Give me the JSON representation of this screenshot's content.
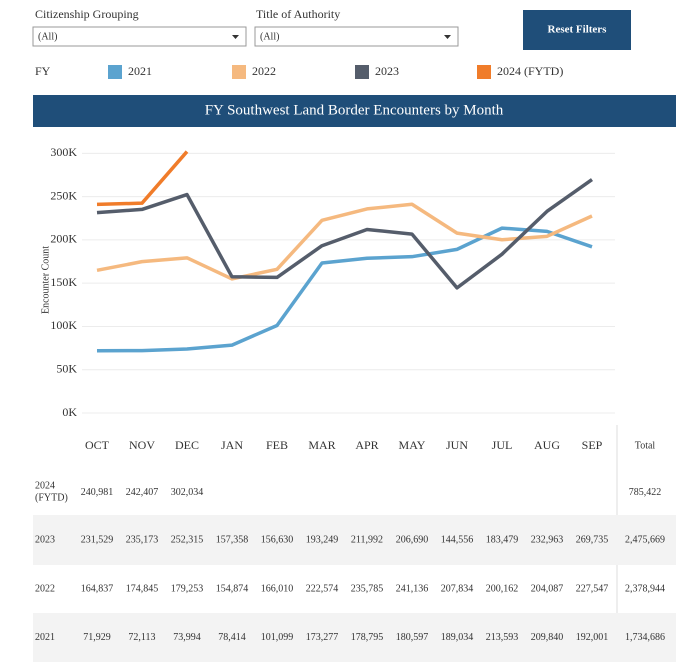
{
  "filters": [
    {
      "label": "Citizenship Grouping",
      "value": "(All)"
    },
    {
      "label": "Title of Authority",
      "value": "(All)"
    }
  ],
  "reset_button": "Reset Filters",
  "legend_title": "FY",
  "chart_data": {
    "type": "line",
    "title": "FY Southwest Land Border Encounters by Month",
    "y_label": "Encounter Count",
    "categories": [
      "OCT",
      "NOV",
      "DEC",
      "JAN",
      "FEB",
      "MAR",
      "APR",
      "MAY",
      "JUN",
      "JUL",
      "AUG",
      "SEP"
    ],
    "series": [
      {
        "name": "2021",
        "color": "#5ba3cf",
        "values": [
          71929,
          72113,
          73994,
          78414,
          101099,
          173277,
          178795,
          180597,
          189034,
          213593,
          209840,
          192001
        ],
        "value_labels": [
          "71,929",
          "72,113",
          "73,994",
          "78,414",
          "101,099",
          "173,277",
          "178,795",
          "180,597",
          "189,034",
          "213,593",
          "209,840",
          "192,001"
        ]
      },
      {
        "name": "2022",
        "color": "#f5b97f",
        "values": [
          164837,
          174845,
          179253,
          154874,
          166010,
          222574,
          235785,
          241136,
          207834,
          200162,
          204087,
          227547
        ],
        "value_labels": [
          "164,837",
          "174,845",
          "179,253",
          "154,874",
          "166,010",
          "222,574",
          "235,785",
          "241,136",
          "207,834",
          "200,162",
          "204,087",
          "227,547"
        ]
      },
      {
        "name": "2023",
        "color": "#555d6b",
        "values": [
          231529,
          235173,
          252315,
          157358,
          156630,
          193249,
          211992,
          206690,
          144556,
          183479,
          232963,
          269735
        ],
        "value_labels": [
          "231,529",
          "235,173",
          "252,315",
          "157,358",
          "156,630",
          "193,249",
          "211,992",
          "206,690",
          "144,556",
          "183,479",
          "232,963",
          "269,735"
        ]
      },
      {
        "name": "2024 (FYTD)",
        "color": "#f07c2a",
        "values": [
          240981,
          242407,
          302034,
          null,
          null,
          null,
          null,
          null,
          null,
          null,
          null,
          null
        ],
        "value_labels": [
          "240,981",
          "242,407",
          "302,034",
          null,
          null,
          null,
          null,
          null,
          null,
          null,
          null,
          null
        ]
      }
    ],
    "ylim": [
      0,
      320000
    ],
    "yticks": [
      {
        "value": 0,
        "label": "0K"
      },
      {
        "value": 50000,
        "label": "50K"
      },
      {
        "value": 100000,
        "label": "100K"
      },
      {
        "value": 150000,
        "label": "150K"
      },
      {
        "value": 200000,
        "label": "200K"
      },
      {
        "value": 250000,
        "label": "250K"
      },
      {
        "value": 300000,
        "label": "300K"
      }
    ],
    "grid": true
  },
  "table": {
    "total_header": "Total",
    "totals": [
      "785,422",
      "2,475,669",
      "2,378,944",
      "1,734,686"
    ]
  }
}
